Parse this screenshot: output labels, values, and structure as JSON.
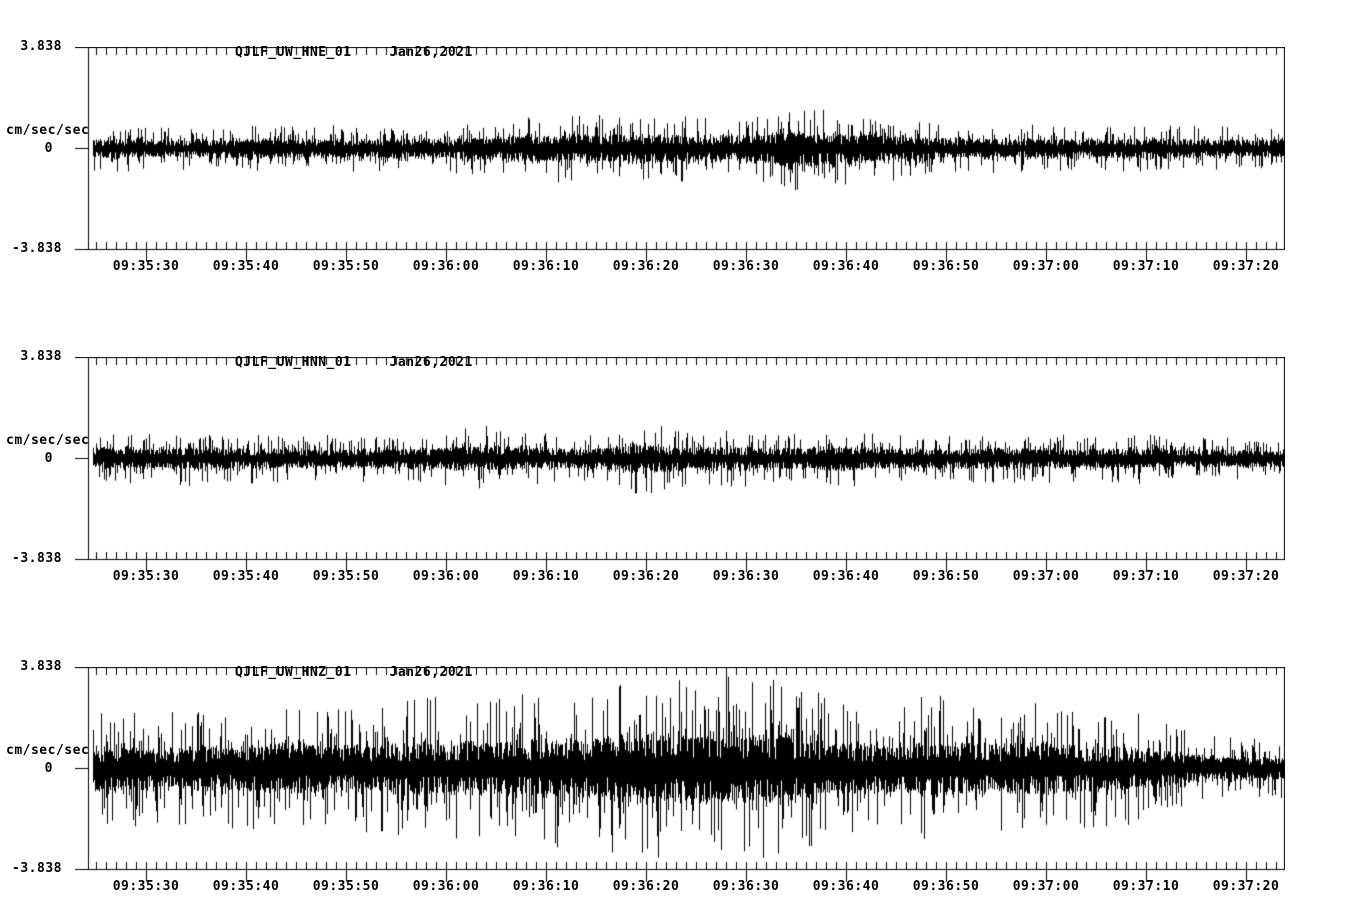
{
  "page": {
    "background_color": "#ffffff",
    "foreground_color": "#000000"
  },
  "chart_data": [
    {
      "type": "line",
      "subtype": "seismogram-waveform",
      "title": "QJLF_UW_HNE_01",
      "date": "Jan26,2021",
      "ylabel": "cm/sec/sec",
      "ylim": [
        -3.838,
        3.838
      ],
      "ytick_values": [
        3.838,
        0,
        -3.838
      ],
      "ytick_labels": [
        "3.838",
        "0",
        "-3.838"
      ],
      "xtick_labels": [
        "09:35:30",
        "09:35:40",
        "09:35:50",
        "09:36:00",
        "09:36:10",
        "09:36:20",
        "09:36:30",
        "09:36:40",
        "09:36:50",
        "09:37:00",
        "09:37:10",
        "09:37:20"
      ],
      "x_start": "09:35:24",
      "x_end": "09:37:24",
      "duration_s": 119.7,
      "first_major_tick_offset_s": 5.8,
      "major_tick_interval_s": 10,
      "minor_tick_interval_s": 1,
      "grid": false,
      "legend": "none",
      "trace_color": "#000000",
      "envelope_sample_interval_s": 5,
      "envelope_peak_cm_s2": [
        0.9,
        0.9,
        0.85,
        0.95,
        0.9,
        0.9,
        0.9,
        0.95,
        1.0,
        1.25,
        1.4,
        1.2,
        1.3,
        1.2,
        1.7,
        1.4,
        1.3,
        1.0,
        0.95,
        0.95,
        0.9,
        0.9,
        0.9,
        0.85
      ],
      "core_ratio": 0.33,
      "seed": 101
    },
    {
      "type": "line",
      "subtype": "seismogram-waveform",
      "title": "QJLF_UW_HNN_01",
      "date": "Jan26,2021",
      "ylabel": "cm/sec/sec",
      "ylim": [
        -3.838,
        3.838
      ],
      "ytick_values": [
        3.838,
        0,
        -3.838
      ],
      "ytick_labels": [
        "3.838",
        "0",
        "-3.838"
      ],
      "xtick_labels": [
        "09:35:30",
        "09:35:40",
        "09:35:50",
        "09:36:00",
        "09:36:10",
        "09:36:20",
        "09:36:30",
        "09:36:40",
        "09:36:50",
        "09:37:00",
        "09:37:10",
        "09:37:20"
      ],
      "x_start": "09:35:24",
      "x_end": "09:37:24",
      "duration_s": 119.7,
      "first_major_tick_offset_s": 5.8,
      "major_tick_interval_s": 10,
      "minor_tick_interval_s": 1,
      "grid": false,
      "legend": "none",
      "trace_color": "#000000",
      "envelope_sample_interval_s": 5,
      "envelope_peak_cm_s2": [
        1.0,
        0.95,
        1.05,
        1.0,
        0.95,
        0.9,
        0.95,
        1.0,
        1.3,
        1.0,
        0.95,
        1.5,
        1.05,
        1.1,
        1.0,
        1.2,
        0.95,
        0.9,
        1.0,
        0.95,
        0.9,
        1.0,
        0.85,
        0.8
      ],
      "core_ratio": 0.33,
      "seed": 202
    },
    {
      "type": "line",
      "subtype": "seismogram-waveform",
      "title": "QJLF_UW_HNZ_01",
      "date": "Jan26,2021",
      "ylabel": "cm/sec/sec",
      "ylim": [
        -3.838,
        3.838
      ],
      "ytick_values": [
        3.838,
        0,
        -3.838
      ],
      "ytick_labels": [
        "3.838",
        "0",
        "-3.838"
      ],
      "xtick_labels": [
        "09:35:30",
        "09:35:40",
        "09:35:50",
        "09:36:00",
        "09:36:10",
        "09:36:20",
        "09:36:30",
        "09:36:40",
        "09:36:50",
        "09:37:00",
        "09:37:10",
        "09:37:20"
      ],
      "x_start": "09:35:24",
      "x_end": "09:37:24",
      "duration_s": 119.7,
      "first_major_tick_offset_s": 5.8,
      "major_tick_interval_s": 10,
      "minor_tick_interval_s": 1,
      "grid": false,
      "legend": "none",
      "trace_color": "#000000",
      "envelope_sample_interval_s": 5,
      "envelope_peak_cm_s2": [
        2.1,
        2.3,
        2.2,
        2.4,
        2.5,
        2.4,
        2.7,
        2.8,
        2.7,
        3.0,
        3.1,
        3.4,
        3.8,
        3.7,
        3.3,
        2.7,
        2.5,
        2.9,
        2.4,
        2.8,
        2.3,
        2.2,
        1.5,
        1.2
      ],
      "core_ratio": 0.3,
      "seed": 303
    }
  ]
}
